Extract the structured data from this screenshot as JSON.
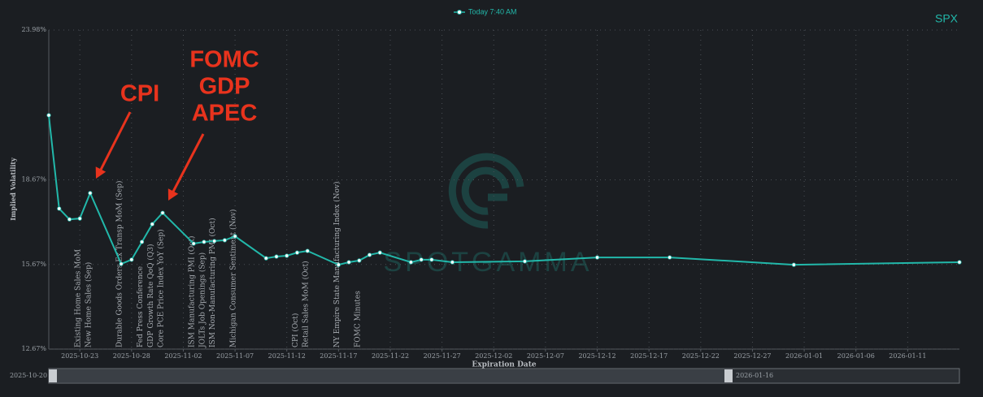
{
  "chart_data": {
    "type": "line",
    "title": "SPX",
    "xlabel": "Expiration Date",
    "ylabel": "Implied Volatility",
    "watermark": "SPOTGAMMA",
    "x": [
      "2025-10-20",
      "2025-10-21",
      "2025-10-22",
      "2025-10-23",
      "2025-10-24",
      "2025-10-27",
      "2025-10-28",
      "2025-10-29",
      "2025-10-30",
      "2025-10-31",
      "2025-11-03",
      "2025-11-04",
      "2025-11-05",
      "2025-11-06",
      "2025-11-07",
      "2025-11-10",
      "2025-11-11",
      "2025-11-12",
      "2025-11-13",
      "2025-11-14",
      "2025-11-17",
      "2025-11-18",
      "2025-11-19",
      "2025-11-20",
      "2025-11-21",
      "2025-11-24",
      "2025-11-25",
      "2025-11-26",
      "2025-11-28",
      "2025-12-05",
      "2025-12-12",
      "2025-12-19",
      "2025-12-31",
      "2026-01-16"
    ],
    "series": [
      {
        "name": "Today 7:40 AM",
        "color": "#22b8aa",
        "values": [
          20.96,
          17.65,
          17.27,
          17.3,
          18.2,
          15.69,
          15.84,
          16.47,
          17.1,
          17.5,
          16.41,
          16.47,
          16.5,
          16.53,
          16.67,
          15.89,
          15.95,
          15.98,
          16.09,
          16.15,
          15.66,
          15.75,
          15.81,
          16.01,
          16.09,
          15.75,
          15.84,
          15.84,
          15.75,
          15.78,
          15.92,
          15.92,
          15.66,
          15.75
        ]
      }
    ],
    "xlim": [
      "2025-10-20",
      "2026-01-16"
    ],
    "xticks": [
      "2025-10-23",
      "2025-10-28",
      "2025-11-02",
      "2025-11-07",
      "2025-11-12",
      "2025-11-17",
      "2025-11-22",
      "2025-11-27",
      "2025-12-02",
      "2025-12-07",
      "2025-12-12",
      "2025-12-17",
      "2025-12-22",
      "2025-12-27",
      "2026-01-01",
      "2026-01-06",
      "2026-01-11"
    ],
    "ylim": [
      12.67,
      23.98
    ],
    "yticks": [
      {
        "value": 12.67,
        "label": "12.67%"
      },
      {
        "value": 15.67,
        "label": "15.67%"
      },
      {
        "value": 18.67,
        "label": "18.67%"
      },
      {
        "value": 23.98,
        "label": "23.98%"
      }
    ],
    "grid": true,
    "events": [
      {
        "date": "2025-10-23",
        "label": "Existing Home Sales MoM"
      },
      {
        "date": "2025-10-24",
        "label": "New Home Sales (Sep)"
      },
      {
        "date": "2025-10-27",
        "label": "Durable Goods Orders Ex Transp MoM (Sep)"
      },
      {
        "date": "2025-10-29",
        "label": "Fed Press Conference"
      },
      {
        "date": "2025-10-30",
        "label": "GDP Growth Rate QoQ (Q3)"
      },
      {
        "date": "2025-10-31",
        "label": "Core PCE Price Index YoY (Sep)"
      },
      {
        "date": "2025-11-03",
        "label": "ISM Manufacturing PMI (Oct)"
      },
      {
        "date": "2025-11-04",
        "label": "JOLTs Job Openings (Sep)"
      },
      {
        "date": "2025-11-05",
        "label": "ISM Non-Manufacturing PMI (Oct)"
      },
      {
        "date": "2025-11-07",
        "label": "Michigan Consumer Sentiment (Nov)"
      },
      {
        "date": "2025-11-13",
        "label": "CPI (Oct)"
      },
      {
        "date": "2025-11-14",
        "label": "Retail Sales MoM (Oct)"
      },
      {
        "date": "2025-11-17",
        "label": "NY Empire State Manufacturing Index (Nov)"
      },
      {
        "date": "2025-11-19",
        "label": "FOMC Minutes"
      }
    ],
    "annotations": [
      {
        "lines": [
          "CPI"
        ]
      },
      {
        "lines": [
          "FOMC",
          "GDP",
          "APEC"
        ]
      }
    ],
    "range_slider": {
      "start": "2025-10-20",
      "end": "2026-01-16"
    }
  }
}
